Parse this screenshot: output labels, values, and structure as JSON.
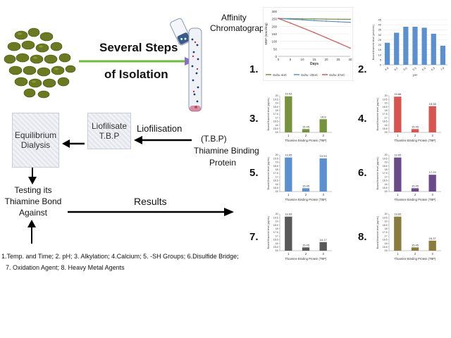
{
  "left": {
    "steps_line1": "Several Steps",
    "steps_line2": "of Isolation",
    "affinity_line1": "Affinity",
    "affinity_line2": "Chromatography",
    "liofilisation": "Liofilisation",
    "tbp_abbr": "(T.B.P)",
    "tbp_line1": "Thiamine Binding",
    "tbp_line2": "Protein",
    "liofilisate_line1": "Liofilisate",
    "liofilisate_line2": "T.B.P",
    "equilibrium_line1": "Equilibrium",
    "equilibrium_line2": "Dialysis",
    "testing_line1": "Testing its",
    "testing_line2": "Thiamine Bond",
    "testing_line3": "Against",
    "results": "Results",
    "factors_line1": "1.Temp. and Time; 2. pH; 3. Alkylation; 4.Calcium; 5. -SH Groups; 6.Disulfide Bridge;",
    "factors_line2": "7. Oxidation Agent; 8. Heavy Metal Agents"
  },
  "colors": {
    "arrow_green": "#6dbf3a",
    "arrow_purple": "#8a6fc8",
    "green": "#76923c",
    "red": "#d9534f",
    "blue": "#5a8fd0",
    "purple": "#6b4a8c",
    "gray": "#595959",
    "olive": "#8a7d3c"
  },
  "chart_data": [
    {
      "number": "1.",
      "type": "line",
      "xlabel": "Days",
      "ylabel": "MBP (nmol/mg)",
      "x": [
        0,
        5,
        10,
        15,
        20,
        25,
        30
      ],
      "xlim": [
        0,
        30
      ],
      "ylim": [
        0,
        300
      ],
      "yticks": [
        0,
        50,
        100,
        150,
        200,
        250,
        300
      ],
      "series": [
        {
          "name": "Suhu 4oC",
          "color": "#76923c",
          "values": [
            252,
            251,
            250,
            249,
            248,
            247,
            246
          ]
        },
        {
          "name": "Suhu -20oC",
          "color": "#5a8fd0",
          "values": [
            252,
            248,
            243,
            238,
            234,
            230,
            226
          ]
        },
        {
          "name": "Suhu 37oC",
          "color": "#d9534f",
          "values": [
            252,
            222,
            190,
            158,
            124,
            90,
            55
          ]
        }
      ]
    },
    {
      "number": "2.",
      "type": "bar",
      "xlabel": "pH",
      "ylabel": "Bound thiamine level (pmol/mL)",
      "categories": [
        "4.0",
        "4.5",
        "5.0",
        "5.5",
        "6.0",
        "6.5",
        "7.0"
      ],
      "values": [
        22,
        32,
        38,
        38,
        37,
        31,
        19
      ],
      "ylim": [
        0,
        45
      ],
      "yticks": [
        0,
        5,
        10,
        15,
        20,
        25,
        30,
        35,
        40,
        45
      ],
      "color": "#5a8fd0"
    },
    {
      "number": "3.",
      "type": "bar",
      "xlabel": "Thiamine Binding Protein (TBP)",
      "ylabel": "Bound thiamine level (pg/mL)",
      "categories": [
        "1",
        "2",
        "3"
      ],
      "values": [
        19.93,
        15.45,
        16.8
      ],
      "value_labels": [
        "19.93",
        "15.45",
        "16.8"
      ],
      "ylim": [
        15,
        20
      ],
      "color": "#76923c"
    },
    {
      "number": "4.",
      "type": "bar",
      "xlabel": "Thiamine Binding Protein (TBP)",
      "ylabel": "Bound thiamine level (pg/mL)",
      "categories": [
        "1",
        "2",
        "3"
      ],
      "values": [
        19.88,
        15.45,
        18.58
      ],
      "value_labels": [
        "19.88",
        "15.45",
        "18.58"
      ],
      "ylim": [
        15,
        20
      ],
      "color": "#d9534f"
    },
    {
      "number": "5.",
      "type": "bar",
      "xlabel": "Thiamine Binding Protein (TBP)",
      "ylabel": "Bound thiamine level (pg/mL)",
      "categories": [
        "1",
        "2",
        "3"
      ],
      "values": [
        19.65,
        15.45,
        19.53
      ],
      "value_labels": [
        "19.65",
        "15.45",
        "19.53"
      ],
      "ylim": [
        15,
        20
      ],
      "color": "#5a8fd0"
    },
    {
      "number": "6.",
      "type": "bar",
      "xlabel": "Thiamine Binding Protein (TBP)",
      "ylabel": "Bound thiamine level (pg/mL)",
      "categories": [
        "1",
        "2",
        "3"
      ],
      "values": [
        19.65,
        15.45,
        17.29
      ],
      "value_labels": [
        "19.65",
        "15.45",
        "17.29"
      ],
      "ylim": [
        15,
        20
      ],
      "color": "#6b4a8c"
    },
    {
      "number": "7.",
      "type": "bar",
      "xlabel": "Thiamine Binding Protein (TBP)",
      "ylabel": "Bound thiamine level (pg/mL)",
      "categories": [
        "1",
        "2",
        "3"
      ],
      "values": [
        19.65,
        15.45,
        16.17
      ],
      "value_labels": [
        "19.65",
        "15.45",
        "16.17"
      ],
      "ylim": [
        15,
        20
      ],
      "color": "#595959"
    },
    {
      "number": "8.",
      "type": "bar",
      "xlabel": "Thiamine Binding Protein (TBP)",
      "ylabel": "Bound thiamine level (pg/mL)",
      "categories": [
        "1",
        "2",
        "3"
      ],
      "values": [
        19.65,
        15.45,
        16.37
      ],
      "value_labels": [
        "19.65",
        "15.45",
        "16.37"
      ],
      "ylim": [
        15,
        20
      ],
      "color": "#8a7d3c"
    }
  ]
}
